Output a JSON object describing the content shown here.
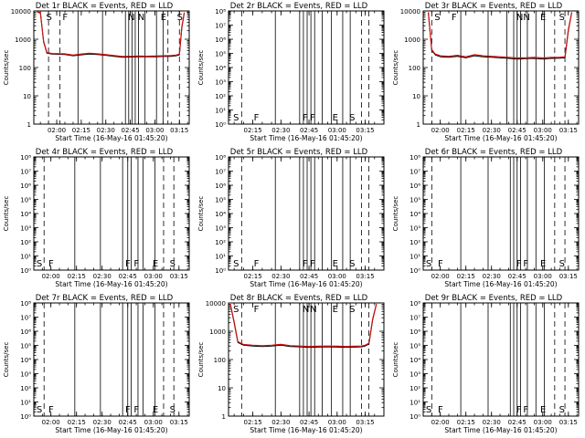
{
  "colors": {
    "events": "#000000",
    "lld": "#d01010",
    "axis": "#000000",
    "background": "#ffffff"
  },
  "common": {
    "xlabel": "Start Time (16-May-16 01:45:20)",
    "ylabel": "Counts/sec",
    "xtick_labels": [
      "02:00",
      "02:15",
      "02:30",
      "02:45",
      "03:00",
      "03:15"
    ]
  },
  "chart_data": [
    {
      "type": "line",
      "title": "Det 1r BLACK = Events, RED = LLD",
      "ylog": true,
      "ylim": [
        1,
        10000
      ],
      "ytick_labels": [
        "1",
        "10",
        "100",
        "1000",
        "10000"
      ],
      "xlim_min": [
        1,
        96
      ],
      "xtick_min": [
        15,
        30,
        45,
        60,
        75,
        90
      ],
      "vlines_solid": [
        28,
        43,
        57,
        59,
        61,
        63,
        65,
        69,
        76,
        80
      ],
      "vlines_dashed": [
        10,
        17,
        83,
        90
      ],
      "markers": [
        {
          "label": "S",
          "x": 8
        },
        {
          "label": "F",
          "x": 18
        },
        {
          "label": "N",
          "x": 58
        },
        {
          "label": "N",
          "x": 64
        },
        {
          "label": "E",
          "x": 78
        },
        {
          "label": "S",
          "x": 88
        }
      ],
      "marker_pos": "top",
      "series": [
        {
          "name": "Events",
          "x": [
            3,
            5,
            7,
            9,
            12,
            20,
            25,
            30,
            35,
            40,
            45,
            50,
            55,
            60,
            65,
            70,
            75,
            80,
            85,
            88,
            90,
            91.5,
            93
          ],
          "y": [
            9000,
            8500,
            800,
            320,
            300,
            290,
            260,
            280,
            300,
            290,
            270,
            250,
            230,
            235,
            240,
            238,
            240,
            245,
            250,
            260,
            280,
            2500,
            8500
          ]
        },
        {
          "name": "LLD",
          "x": [
            3,
            5,
            7,
            9,
            12,
            20,
            25,
            30,
            35,
            40,
            45,
            50,
            55,
            60,
            65,
            70,
            75,
            80,
            85,
            88,
            90,
            91.5,
            93
          ],
          "y": [
            9200,
            8800,
            850,
            340,
            315,
            305,
            275,
            300,
            320,
            305,
            285,
            265,
            245,
            250,
            255,
            252,
            255,
            260,
            265,
            275,
            300,
            2700,
            8800
          ]
        }
      ]
    },
    {
      "type": "line",
      "title": "Det 2r BLACK = Events, RED = LLD",
      "ylog": true,
      "ylim": [
        1,
        100000000
      ],
      "ytick_labels": [
        "10⁰",
        "10¹",
        "10²",
        "10³",
        "10⁴",
        "10⁵",
        "10⁶",
        "10⁷",
        "10⁸"
      ],
      "xlim_min": [
        17,
        100
      ],
      "xtick_min": [
        30,
        45,
        60,
        75,
        90
      ],
      "vlines_solid": [
        42,
        55,
        57,
        59,
        61,
        63,
        67,
        72,
        78,
        82
      ],
      "vlines_dashed": [
        24,
        88,
        92
      ],
      "markers": [
        {
          "label": "S",
          "x": 19
        },
        {
          "label": "F",
          "x": 30
        },
        {
          "label": "F",
          "x": 56
        },
        {
          "label": "F",
          "x": 60
        },
        {
          "label": "E",
          "x": 72
        },
        {
          "label": "S",
          "x": 81
        }
      ],
      "marker_pos": "bottom",
      "series": []
    },
    {
      "type": "line",
      "title": "Det 3r BLACK = Events, RED = LLD",
      "ylog": true,
      "ylim": [
        1,
        10000
      ],
      "ytick_labels": [
        "1",
        "10",
        "100",
        "1000",
        "10000"
      ],
      "xlim_min": [
        5,
        96
      ],
      "xtick_min": [
        15,
        30,
        45,
        60,
        75,
        90
      ],
      "vlines_solid": [
        27,
        43,
        54,
        58,
        60,
        62,
        66,
        71,
        76
      ],
      "vlines_dashed": [
        10,
        82,
        88
      ],
      "markers": [
        {
          "label": "S",
          "x": 11
        },
        {
          "label": "F",
          "x": 21
        },
        {
          "label": "N",
          "x": 59
        },
        {
          "label": "N",
          "x": 63
        },
        {
          "label": "E",
          "x": 73
        },
        {
          "label": "S",
          "x": 84
        }
      ],
      "marker_pos": "top",
      "series": [
        {
          "name": "Events",
          "x": [
            8,
            10,
            12,
            15,
            20,
            25,
            30,
            35,
            40,
            45,
            50,
            55,
            60,
            65,
            70,
            75,
            80,
            85,
            88,
            90,
            92
          ],
          "y": [
            8800,
            400,
            280,
            240,
            230,
            250,
            220,
            260,
            240,
            230,
            220,
            210,
            200,
            205,
            210,
            200,
            210,
            215,
            220,
            2000,
            8800
          ]
        },
        {
          "name": "LLD",
          "x": [
            8,
            10,
            12,
            15,
            20,
            25,
            30,
            35,
            40,
            45,
            50,
            55,
            60,
            65,
            70,
            75,
            80,
            85,
            88,
            90,
            92
          ],
          "y": [
            9000,
            430,
            300,
            260,
            250,
            270,
            240,
            285,
            260,
            250,
            240,
            228,
            218,
            222,
            228,
            218,
            228,
            232,
            240,
            2200,
            9000
          ]
        }
      ]
    },
    {
      "type": "line",
      "title": "Det 4r BLACK = Events, RED = LLD",
      "ylog": true,
      "ylim": [
        1,
        100000000
      ],
      "ytick_labels": [
        "10⁰",
        "10¹",
        "10²",
        "10³",
        "10⁴",
        "10⁵",
        "10⁶",
        "10⁷",
        "10⁸"
      ],
      "xlim_min": [
        5,
        96
      ],
      "xtick_min": [
        15,
        30,
        45,
        60,
        75,
        90
      ],
      "vlines_solid": [
        29,
        44,
        57,
        60,
        62,
        66,
        69,
        76
      ],
      "vlines_dashed": [
        11,
        81,
        87
      ],
      "markers": [
        {
          "label": "S",
          "x": 6
        },
        {
          "label": "F",
          "x": 13
        },
        {
          "label": "F",
          "x": 58
        },
        {
          "label": "F",
          "x": 63
        },
        {
          "label": "E",
          "x": 74
        },
        {
          "label": "S",
          "x": 84
        }
      ],
      "marker_pos": "bottom",
      "series": []
    },
    {
      "type": "line",
      "title": "Det 5r BLACK = Events, RED = LLD",
      "ylog": true,
      "ylim": [
        1,
        100000000
      ],
      "ytick_labels": [
        "10⁰",
        "10¹",
        "10²",
        "10³",
        "10⁴",
        "10⁵",
        "10⁶",
        "10⁷",
        "10⁸"
      ],
      "xlim_min": [
        17,
        100
      ],
      "xtick_min": [
        30,
        45,
        60,
        75,
        90
      ],
      "vlines_solid": [
        42,
        55,
        57,
        59,
        61,
        63,
        67,
        72,
        78,
        82
      ],
      "vlines_dashed": [
        24,
        88,
        92
      ],
      "markers": [
        {
          "label": "S",
          "x": 19
        },
        {
          "label": "F",
          "x": 30
        },
        {
          "label": "F",
          "x": 56
        },
        {
          "label": "F",
          "x": 60
        },
        {
          "label": "E",
          "x": 72
        },
        {
          "label": "S",
          "x": 81
        }
      ],
      "marker_pos": "bottom",
      "series": []
    },
    {
      "type": "line",
      "title": "Det 6r BLACK = Events, RED = LLD",
      "ylog": true,
      "ylim": [
        1,
        100000000
      ],
      "ytick_labels": [
        "10⁰",
        "10¹",
        "10²",
        "10³",
        "10⁴",
        "10⁵",
        "10⁶",
        "10⁷",
        "10⁸"
      ],
      "xlim_min": [
        5,
        96
      ],
      "xtick_min": [
        15,
        30,
        45,
        60,
        75,
        90
      ],
      "vlines_solid": [
        27,
        43,
        56,
        58,
        60,
        62,
        66,
        71,
        76
      ],
      "vlines_dashed": [
        10,
        82,
        88
      ],
      "markers": [
        {
          "label": "S",
          "x": 6
        },
        {
          "label": "F",
          "x": 13
        },
        {
          "label": "F",
          "x": 59
        },
        {
          "label": "F",
          "x": 63
        },
        {
          "label": "E",
          "x": 73
        },
        {
          "label": "S",
          "x": 84
        }
      ],
      "marker_pos": "bottom",
      "series": []
    },
    {
      "type": "line",
      "title": "Det 7r BLACK = Events, RED = LLD",
      "ylog": true,
      "ylim": [
        1,
        100000000
      ],
      "ytick_labels": [
        "10⁰",
        "10¹",
        "10²",
        "10³",
        "10⁴",
        "10⁵",
        "10⁶",
        "10⁷",
        "10⁸"
      ],
      "xlim_min": [
        5,
        96
      ],
      "xtick_min": [
        15,
        30,
        45,
        60,
        75,
        90
      ],
      "vlines_solid": [
        29,
        44,
        57,
        60,
        62,
        66,
        69,
        76
      ],
      "vlines_dashed": [
        11,
        81,
        87
      ],
      "markers": [
        {
          "label": "S",
          "x": 6
        },
        {
          "label": "F",
          "x": 13
        },
        {
          "label": "F",
          "x": 58
        },
        {
          "label": "F",
          "x": 63
        },
        {
          "label": "E",
          "x": 74
        },
        {
          "label": "S",
          "x": 84
        }
      ],
      "marker_pos": "bottom",
      "series": []
    },
    {
      "type": "line",
      "title": "Det 8r BLACK = Events, RED = LLD",
      "ylog": true,
      "ylim": [
        1,
        10000
      ],
      "ytick_labels": [
        "1",
        "10",
        "100",
        "1000",
        "10000"
      ],
      "xlim_min": [
        17,
        100
      ],
      "xtick_min": [
        30,
        45,
        60,
        75,
        90
      ],
      "vlines_solid": [
        42,
        55,
        57,
        59,
        61,
        63,
        67,
        72,
        78,
        82
      ],
      "vlines_dashed": [
        24,
        88,
        92
      ],
      "markers": [
        {
          "label": "S",
          "x": 19
        },
        {
          "label": "F",
          "x": 30
        },
        {
          "label": "N",
          "x": 56
        },
        {
          "label": "N",
          "x": 60
        },
        {
          "label": "E",
          "x": 72
        },
        {
          "label": "S",
          "x": 81
        }
      ],
      "marker_pos": "top",
      "series": [
        {
          "name": "Events",
          "x": [
            18,
            20,
            22,
            25,
            30,
            35,
            40,
            45,
            50,
            55,
            60,
            65,
            70,
            75,
            80,
            85,
            88,
            90,
            92,
            94,
            96
          ],
          "y": [
            9000,
            2000,
            400,
            320,
            300,
            290,
            300,
            320,
            290,
            280,
            270,
            275,
            280,
            275,
            270,
            275,
            280,
            300,
            350,
            2500,
            9000
          ]
        },
        {
          "name": "LLD",
          "x": [
            18,
            20,
            22,
            25,
            30,
            35,
            40,
            45,
            50,
            55,
            60,
            65,
            70,
            75,
            80,
            85,
            88,
            90,
            92,
            94,
            96
          ],
          "y": [
            9200,
            2200,
            430,
            340,
            320,
            310,
            320,
            345,
            310,
            300,
            290,
            295,
            300,
            295,
            290,
            295,
            300,
            320,
            375,
            2700,
            9200
          ]
        }
      ]
    },
    {
      "type": "line",
      "title": "Det 9r BLACK = Events, RED = LLD",
      "ylog": true,
      "ylim": [
        1,
        100000000
      ],
      "ytick_labels": [
        "10⁰",
        "10¹",
        "10²",
        "10³",
        "10⁴",
        "10⁵",
        "10⁶",
        "10⁷",
        "10⁸"
      ],
      "xlim_min": [
        5,
        96
      ],
      "xtick_min": [
        15,
        30,
        45,
        60,
        75,
        90
      ],
      "vlines_solid": [
        27,
        43,
        56,
        58,
        60,
        62,
        66,
        71,
        76
      ],
      "vlines_dashed": [
        10,
        82,
        88
      ],
      "markers": [
        {
          "label": "S",
          "x": 6
        },
        {
          "label": "F",
          "x": 13
        },
        {
          "label": "F",
          "x": 59
        },
        {
          "label": "F",
          "x": 63
        },
        {
          "label": "E",
          "x": 73
        },
        {
          "label": "S",
          "x": 84
        }
      ],
      "marker_pos": "bottom",
      "series": []
    }
  ]
}
